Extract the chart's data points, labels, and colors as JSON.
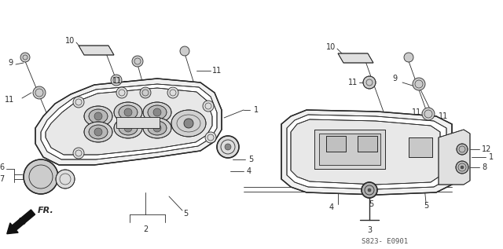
{
  "bg_color": "#ffffff",
  "line_color": "#2a2a2a",
  "fig_width": 6.4,
  "fig_height": 3.17,
  "dpi": 100,
  "diagram_code": "S823- E0901",
  "fr_label": "FR."
}
